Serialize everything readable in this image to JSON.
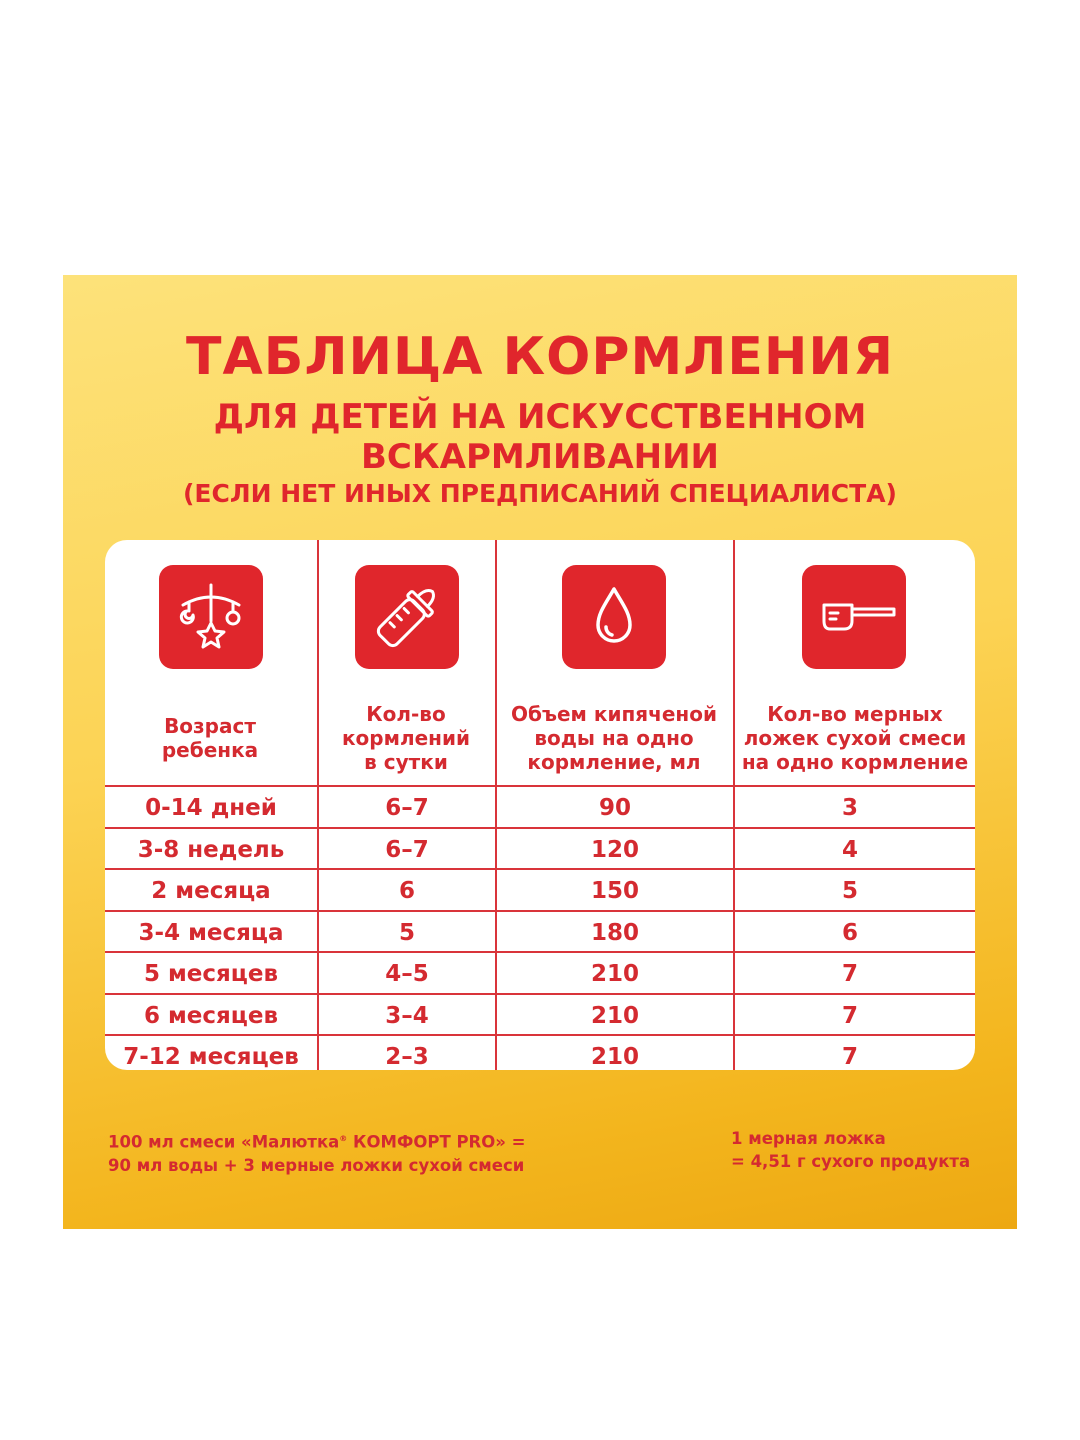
{
  "title": "ТАБЛИЦА КОРМЛЕНИЯ",
  "subtitle_line1": "ДЛЯ ДЕТЕЙ НА ИСКУССТВЕННОМ",
  "subtitle_line2": "ВСКАРМЛИВАНИИ",
  "note": "(ЕСЛИ НЕТ ИНЫХ ПРЕДПИСАНИЙ СПЕЦИАЛИСТА)",
  "columns": [
    {
      "icon": "baby-mobile-icon",
      "header": [
        "Возраст",
        "ребенка"
      ]
    },
    {
      "icon": "baby-bottle-icon",
      "header": [
        "Кол-во",
        "кормлений",
        "в сутки"
      ]
    },
    {
      "icon": "water-drop-icon",
      "header": [
        "Объем кипяченой",
        "воды на одно",
        "кормление, мл"
      ]
    },
    {
      "icon": "measuring-scoop-icon",
      "header": [
        "Кол-во мерных",
        "ложек сухой смеси",
        "на одно кормление"
      ]
    }
  ],
  "rows": [
    [
      "0-14 дней",
      "6–7",
      "90",
      "3"
    ],
    [
      "3-8 недель",
      "6–7",
      "120",
      "4"
    ],
    [
      "2 месяца",
      "6",
      "150",
      "5"
    ],
    [
      "3-4 месяца",
      "5",
      "180",
      "6"
    ],
    [
      "5 месяцев",
      "4–5",
      "210",
      "7"
    ],
    [
      "6 месяцев",
      "3–4",
      "210",
      "7"
    ],
    [
      "7-12 месяцев",
      "2–3",
      "210",
      "7"
    ]
  ],
  "footer_left_line1_a": "100 мл смеси «Малютка",
  "footer_left_line1_reg": "®",
  "footer_left_line1_b": " КОМФОРТ PRO» =",
  "footer_left_line2": "90 мл воды + 3 мерные ложки сухой смеси",
  "footer_right_line1": "1 мерная ложка",
  "footer_right_line2": "= 4,51 г сухого продукта",
  "colors": {
    "accent_red": "#e0262c",
    "background_yellow": "#fcd354",
    "card": "#ffffff"
  }
}
